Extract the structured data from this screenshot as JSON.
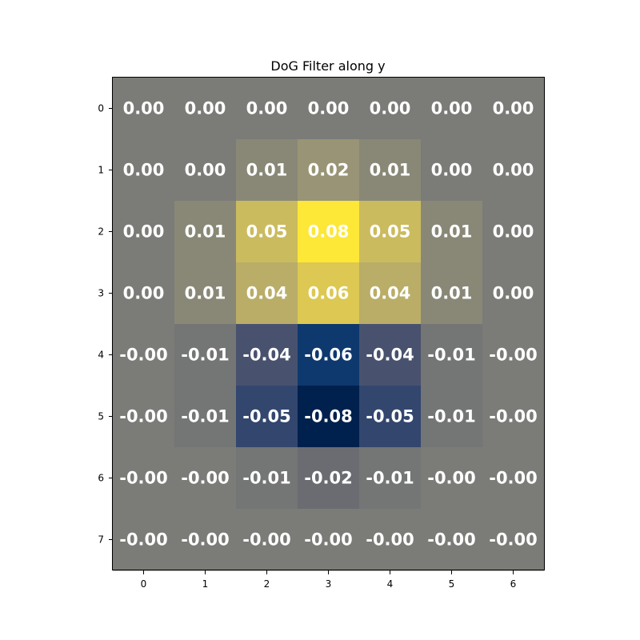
{
  "chart_data": {
    "type": "heatmap",
    "title": "DoG Filter along y",
    "xlabel": "",
    "ylabel": "",
    "x_ticks": [
      "0",
      "1",
      "2",
      "3",
      "4",
      "5",
      "6"
    ],
    "y_ticks": [
      "0",
      "1",
      "2",
      "3",
      "4",
      "5",
      "6",
      "7"
    ],
    "colormap": "cividis",
    "vlim": [
      -0.08,
      0.08
    ],
    "values": [
      [
        0.0,
        0.0,
        0.0,
        0.0,
        0.0,
        0.0,
        0.0
      ],
      [
        0.0,
        0.0,
        0.01,
        0.02,
        0.01,
        0.0,
        0.0
      ],
      [
        0.0,
        0.01,
        0.05,
        0.08,
        0.05,
        0.01,
        0.0
      ],
      [
        0.0,
        0.01,
        0.04,
        0.06,
        0.04,
        0.01,
        0.0
      ],
      [
        -0.0,
        -0.01,
        -0.04,
        -0.06,
        -0.04,
        -0.01,
        -0.0
      ],
      [
        -0.0,
        -0.01,
        -0.05,
        -0.08,
        -0.05,
        -0.01,
        -0.0
      ],
      [
        -0.0,
        -0.0,
        -0.01,
        -0.02,
        -0.01,
        -0.0,
        -0.0
      ],
      [
        -0.0,
        -0.0,
        -0.0,
        -0.0,
        -0.0,
        -0.0,
        -0.0
      ]
    ],
    "labels": [
      [
        "0.00",
        "0.00",
        "0.00",
        "0.00",
        "0.00",
        "0.00",
        "0.00"
      ],
      [
        "0.00",
        "0.00",
        "0.01",
        "0.02",
        "0.01",
        "0.00",
        "0.00"
      ],
      [
        "0.00",
        "0.01",
        "0.05",
        "0.08",
        "0.05",
        "0.01",
        "0.00"
      ],
      [
        "0.00",
        "0.01",
        "0.04",
        "0.06",
        "0.04",
        "0.01",
        "0.00"
      ],
      [
        "-0.00",
        "-0.01",
        "-0.04",
        "-0.06",
        "-0.04",
        "-0.01",
        "-0.00"
      ],
      [
        "-0.00",
        "-0.01",
        "-0.05",
        "-0.08",
        "-0.05",
        "-0.01",
        "-0.00"
      ],
      [
        "-0.00",
        "-0.00",
        "-0.01",
        "-0.02",
        "-0.01",
        "-0.00",
        "-0.00"
      ],
      [
        "-0.00",
        "-0.00",
        "-0.00",
        "-0.00",
        "-0.00",
        "-0.00",
        "-0.00"
      ]
    ]
  }
}
